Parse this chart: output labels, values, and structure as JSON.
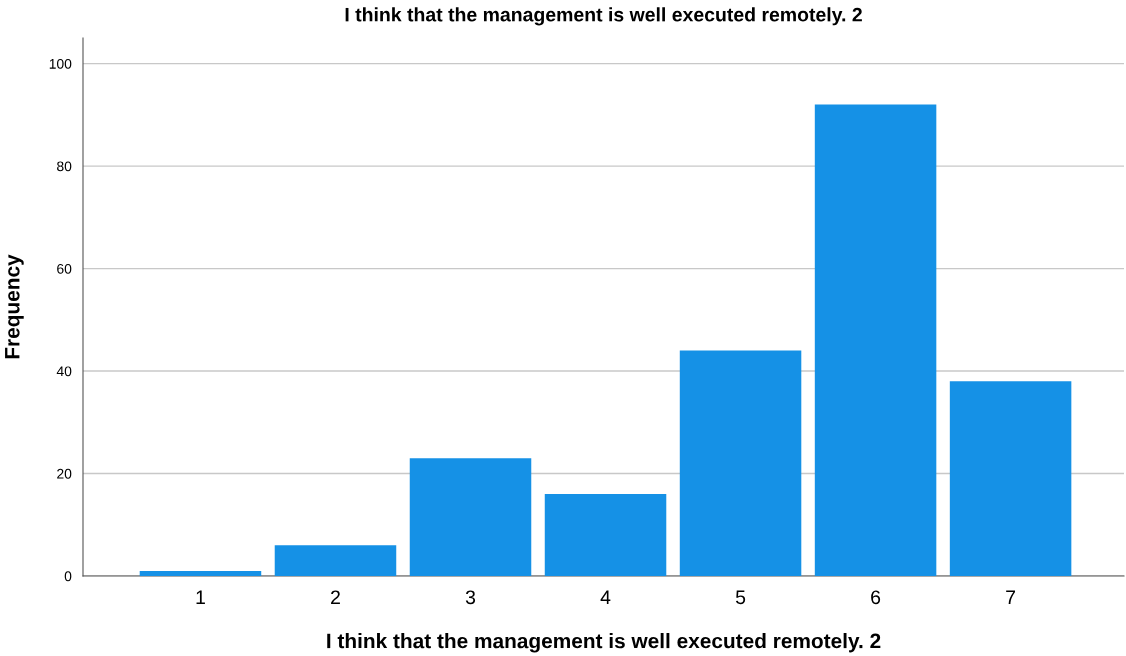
{
  "chart_data": {
    "type": "bar",
    "title": "I think that the management is well executed remotely. 2",
    "xlabel": "I think that the management is well executed remotely. 2",
    "ylabel": "Frequency",
    "categories": [
      "1",
      "2",
      "3",
      "4",
      "5",
      "6",
      "7"
    ],
    "values": [
      1,
      6,
      23,
      16,
      44,
      92,
      38
    ],
    "color": "#1591e6",
    "ylim": [
      0,
      105
    ],
    "yticks": [
      0,
      20,
      40,
      60,
      80,
      100
    ],
    "grid": "y",
    "legend": false
  }
}
